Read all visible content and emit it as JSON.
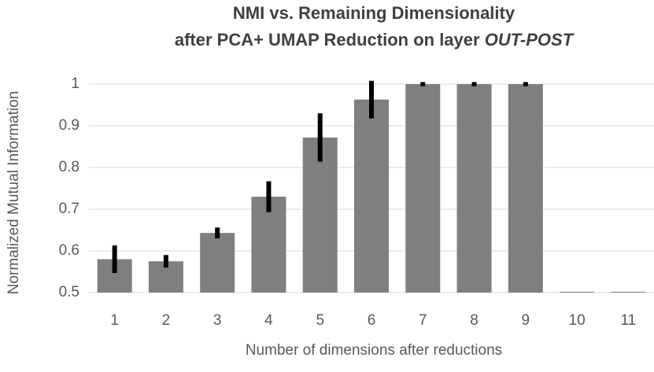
{
  "chart_data": {
    "type": "bar",
    "title": [
      "NMI vs.  Remaining Dimensionality",
      "after PCA+ UMAP Reduction on layer"
    ],
    "title_layer": "OUT-POST",
    "x_label": "Number of dimensions after reductions",
    "y_label": "Normalized Mutual Information",
    "categories": [
      "1",
      "2",
      "3",
      "4",
      "5",
      "6",
      "7",
      "8",
      "9",
      "10",
      "11"
    ],
    "values": [
      0.58,
      0.575,
      0.643,
      0.73,
      0.872,
      0.963,
      1,
      1,
      1,
      0.5,
      0.5
    ],
    "errors": [
      0.033,
      0.015,
      0.013,
      0.037,
      0.058,
      0.045,
      0.005,
      0.005,
      0.005,
      0,
      0
    ],
    "color": "#7f7f7f",
    "error_color": "#000000",
    "ylim": [
      0.5,
      1.05
    ],
    "yticks": [
      0.5,
      0.6,
      0.7,
      0.8,
      0.9,
      1
    ],
    "grid": true
  }
}
